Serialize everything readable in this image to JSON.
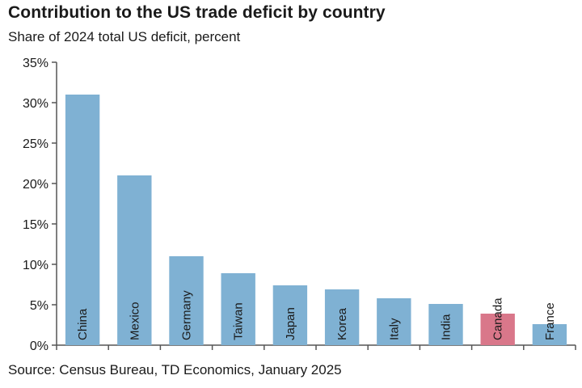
{
  "chart_data": {
    "type": "bar",
    "title": "Contribution to the US trade deficit by country",
    "subtitle": "Share of 2024 total US deficit, percent",
    "source": "Source: Census Bureau, TD Economics, January 2025",
    "categories": [
      "China",
      "Mexico",
      "Germany",
      "Taiwan",
      "Japan",
      "Korea",
      "Italy",
      "India",
      "Canada",
      "France"
    ],
    "values": [
      31.0,
      21.0,
      11.0,
      8.9,
      7.4,
      6.9,
      5.8,
      5.1,
      3.9,
      2.6
    ],
    "ylim": [
      0,
      35
    ],
    "yticks": [
      0,
      5,
      10,
      15,
      20,
      25,
      30,
      35
    ],
    "ytick_labels": [
      "0%",
      "5%",
      "10%",
      "15%",
      "20%",
      "25%",
      "30%",
      "35%"
    ],
    "grid": false,
    "colors": {
      "default_bar": "#7fb1d3",
      "highlight_bar": "#d9778a",
      "axis": "#555555"
    },
    "highlight_category": "Canada"
  }
}
